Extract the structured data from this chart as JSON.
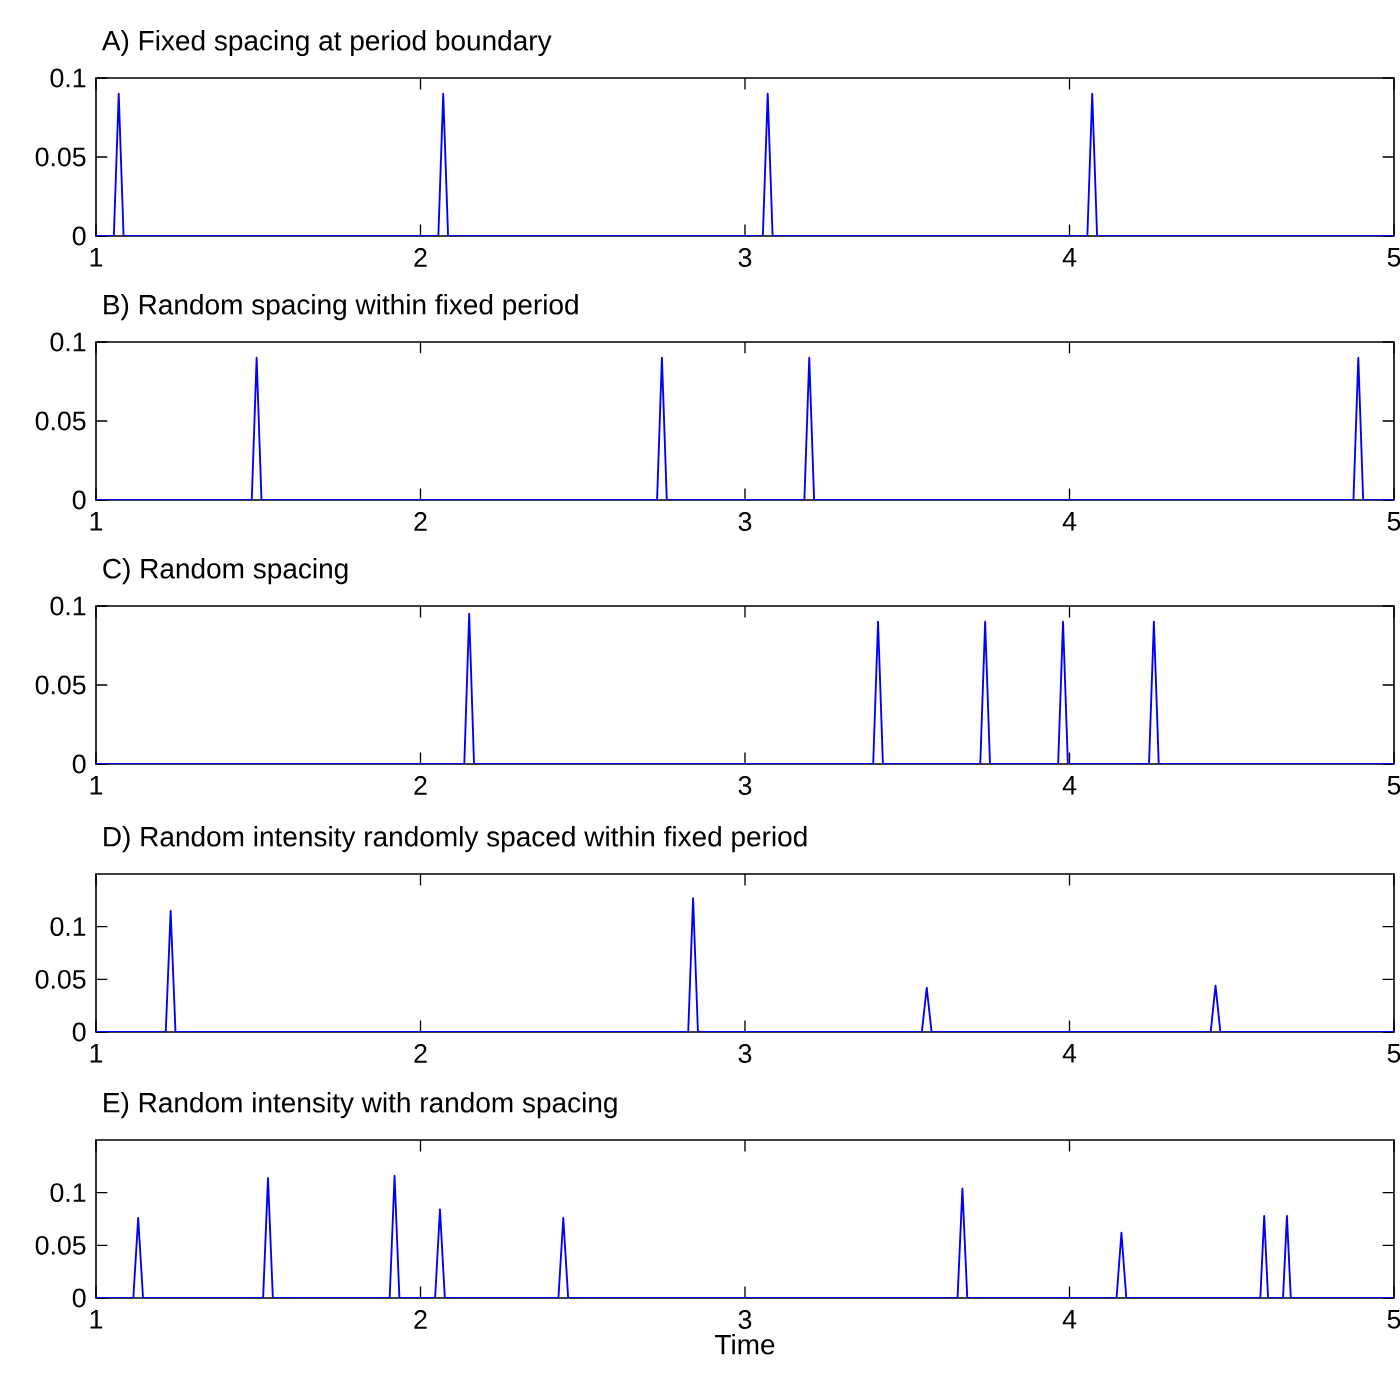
{
  "chart_data": [
    {
      "type": "line",
      "title": "A) Fixed spacing at period boundary",
      "color": "#0000ff",
      "xlim": [
        1,
        5
      ],
      "ylim": [
        0,
        0.1
      ],
      "xticks": [
        1,
        2,
        3,
        4,
        5
      ],
      "yticks": [
        0,
        0.05,
        0.1
      ],
      "x": [
        1,
        1.055,
        1.07,
        1.085,
        2.055,
        2.07,
        2.085,
        3.055,
        3.07,
        3.085,
        4.055,
        4.07,
        4.085,
        5
      ],
      "values": [
        0,
        0,
        0.09,
        0,
        0,
        0.09,
        0,
        0,
        0.09,
        0,
        0,
        0.09,
        0,
        0
      ]
    },
    {
      "type": "line",
      "title": "B) Random spacing within fixed period",
      "color": "#0000ff",
      "xlim": [
        1,
        5
      ],
      "ylim": [
        0,
        0.1
      ],
      "xticks": [
        1,
        2,
        3,
        4,
        5
      ],
      "yticks": [
        0,
        0.05,
        0.1
      ],
      "x": [
        1,
        1.48,
        1.495,
        1.51,
        2.729,
        2.744,
        2.759,
        3.183,
        3.198,
        3.213,
        4.875,
        4.89,
        4.905,
        5
      ],
      "values": [
        0,
        0,
        0.09,
        0,
        0,
        0.09,
        0,
        0,
        0.09,
        0,
        0,
        0.09,
        0,
        0
      ]
    },
    {
      "type": "line",
      "title": "C) Random spacing",
      "color": "#0000ff",
      "xlim": [
        1,
        5
      ],
      "ylim": [
        0,
        0.1
      ],
      "xticks": [
        1,
        2,
        3,
        4,
        5
      ],
      "yticks": [
        0,
        0.05,
        0.1
      ],
      "x": [
        1,
        2.135,
        2.15,
        2.165,
        3.395,
        3.41,
        3.425,
        3.725,
        3.74,
        3.755,
        3.965,
        3.98,
        3.995,
        4.245,
        4.26,
        4.275,
        5
      ],
      "values": [
        0,
        0,
        0.095,
        0,
        0,
        0.09,
        0,
        0,
        0.09,
        0,
        0,
        0.09,
        0,
        0,
        0.09,
        0,
        0
      ]
    },
    {
      "type": "line",
      "title": "D) Random intensity randomly spaced within fixed period",
      "color": "#0000ff",
      "xlim": [
        1,
        5
      ],
      "ylim": [
        0,
        0.15
      ],
      "xticks": [
        1,
        2,
        3,
        4,
        5
      ],
      "yticks": [
        0,
        0.05,
        0.1
      ],
      "x": [
        1,
        1.215,
        1.23,
        1.245,
        2.825,
        2.84,
        2.855,
        3.545,
        3.56,
        3.575,
        4.435,
        4.45,
        4.465,
        5
      ],
      "values": [
        0,
        0,
        0.115,
        0,
        0,
        0.127,
        0,
        0,
        0.042,
        0,
        0,
        0.044,
        0,
        0
      ]
    },
    {
      "type": "line",
      "title": "E) Random intensity with random spacing",
      "xlabel": "Time",
      "color": "#0000ff",
      "xlim": [
        1,
        5
      ],
      "ylim": [
        0,
        0.15
      ],
      "xticks": [
        1,
        2,
        3,
        4,
        5
      ],
      "yticks": [
        0,
        0.05,
        0.1
      ],
      "x": [
        1,
        1.115,
        1.13,
        1.145,
        1.515,
        1.53,
        1.545,
        1.905,
        1.92,
        1.935,
        2.045,
        2.06,
        2.075,
        2.425,
        2.44,
        2.455,
        3.655,
        3.67,
        3.685,
        4.145,
        4.16,
        4.175,
        4.588,
        4.6,
        4.612,
        4.658,
        4.67,
        4.682,
        5
      ],
      "values": [
        0,
        0,
        0.076,
        0,
        0,
        0.114,
        0,
        0,
        0.116,
        0,
        0,
        0.084,
        0,
        0,
        0.076,
        0,
        0,
        0.104,
        0,
        0,
        0.062,
        0,
        0,
        0.078,
        0,
        0,
        0.078,
        0,
        0
      ]
    }
  ]
}
